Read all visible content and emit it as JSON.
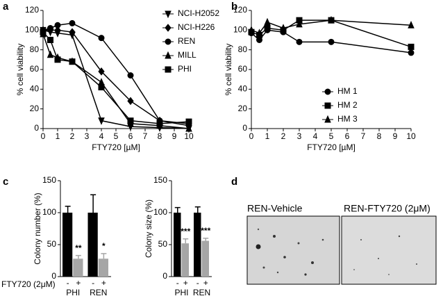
{
  "panel_labels": [
    "a",
    "b",
    "c",
    "d"
  ],
  "chart_data": [
    {
      "type": "line",
      "x_label": "FTY720 [µM]",
      "y_label": "% cell viability",
      "x": [
        0,
        0.5,
        1,
        2,
        4,
        6,
        8,
        10
      ],
      "xlim": [
        0,
        10
      ],
      "xticks": [
        0,
        1,
        2,
        3,
        4,
        5,
        6,
        7,
        8,
        9,
        10
      ],
      "ylim": [
        0,
        120
      ],
      "yticks": [
        0,
        20,
        40,
        60,
        80,
        100,
        120
      ],
      "legend": "upper right",
      "series": [
        {
          "name": "NCI-H2052",
          "marker": "triangle-down",
          "color": "#000000",
          "values": [
            100,
            98,
            97,
            95,
            8,
            2,
            1,
            0
          ]
        },
        {
          "name": "NCI-H226",
          "marker": "diamond",
          "color": "#000000",
          "values": [
            100,
            100,
            100,
            98,
            58,
            28,
            8,
            3
          ]
        },
        {
          "name": "REN",
          "marker": "circle",
          "color": "#000000",
          "values": [
            100,
            102,
            105,
            107,
            92,
            54,
            8,
            5
          ]
        },
        {
          "name": "MILL",
          "marker": "triangle-up",
          "color": "#000000",
          "values": [
            96,
            75,
            72,
            68,
            47,
            5,
            3,
            0
          ]
        },
        {
          "name": "PHI",
          "marker": "square",
          "color": "#000000",
          "values": [
            98,
            90,
            70,
            68,
            42,
            8,
            5,
            7
          ]
        }
      ]
    },
    {
      "type": "line",
      "x_label": "FTY720 [µM]",
      "y_label": "% cell viability",
      "x": [
        0,
        0.5,
        1,
        2,
        3,
        5,
        10
      ],
      "xlim": [
        0,
        10
      ],
      "xticks": [
        0,
        1,
        2,
        3,
        4,
        5,
        6,
        7,
        8,
        9,
        10
      ],
      "ylim": [
        0,
        120
      ],
      "yticks": [
        0,
        20,
        40,
        60,
        80,
        100,
        120
      ],
      "legend": "lower right",
      "series": [
        {
          "name": "HM 1",
          "marker": "circle",
          "color": "#000000",
          "values": [
            97,
            90,
            100,
            98,
            88,
            88,
            77
          ]
        },
        {
          "name": "HM 2",
          "marker": "square",
          "color": "#000000",
          "values": [
            98,
            95,
            102,
            100,
            110,
            110,
            83
          ]
        },
        {
          "name": "HM 3",
          "marker": "triangle-up",
          "color": "#000000",
          "values": [
            100,
            97,
            108,
            102,
            106,
            110,
            105
          ]
        }
      ]
    },
    {
      "type": "bar",
      "y_label": "Colony number (%)",
      "treatment_label": "FTY720 (2μM)",
      "groups": [
        "PHI",
        "REN"
      ],
      "categories": [
        "-",
        "+",
        "-",
        "+"
      ],
      "values": [
        100,
        28,
        100,
        28
      ],
      "errors": [
        10,
        5,
        28,
        8
      ],
      "colors": [
        "#000000",
        "#a6a6a6",
        "#000000",
        "#a6a6a6"
      ],
      "annotations": [
        null,
        "**",
        null,
        "*"
      ],
      "ylim": [
        0,
        150
      ],
      "yticks": [
        0,
        50,
        100,
        150
      ]
    },
    {
      "type": "bar",
      "y_label": "Colony size (%)",
      "groups": [
        "PHI",
        "REN"
      ],
      "categories": [
        "-",
        "+",
        "-",
        "+"
      ],
      "values": [
        100,
        52,
        100,
        56
      ],
      "errors": [
        8,
        7,
        9,
        4
      ],
      "colors": [
        "#000000",
        "#a6a6a6",
        "#000000",
        "#a6a6a6"
      ],
      "annotations": [
        null,
        "***",
        null,
        "***"
      ],
      "ylim": [
        0,
        150
      ],
      "yticks": [
        0,
        50,
        100,
        150
      ]
    }
  ],
  "images": [
    {
      "label": "REN-Vehicle"
    },
    {
      "label": "REN-FTY720 (2μM)"
    }
  ]
}
